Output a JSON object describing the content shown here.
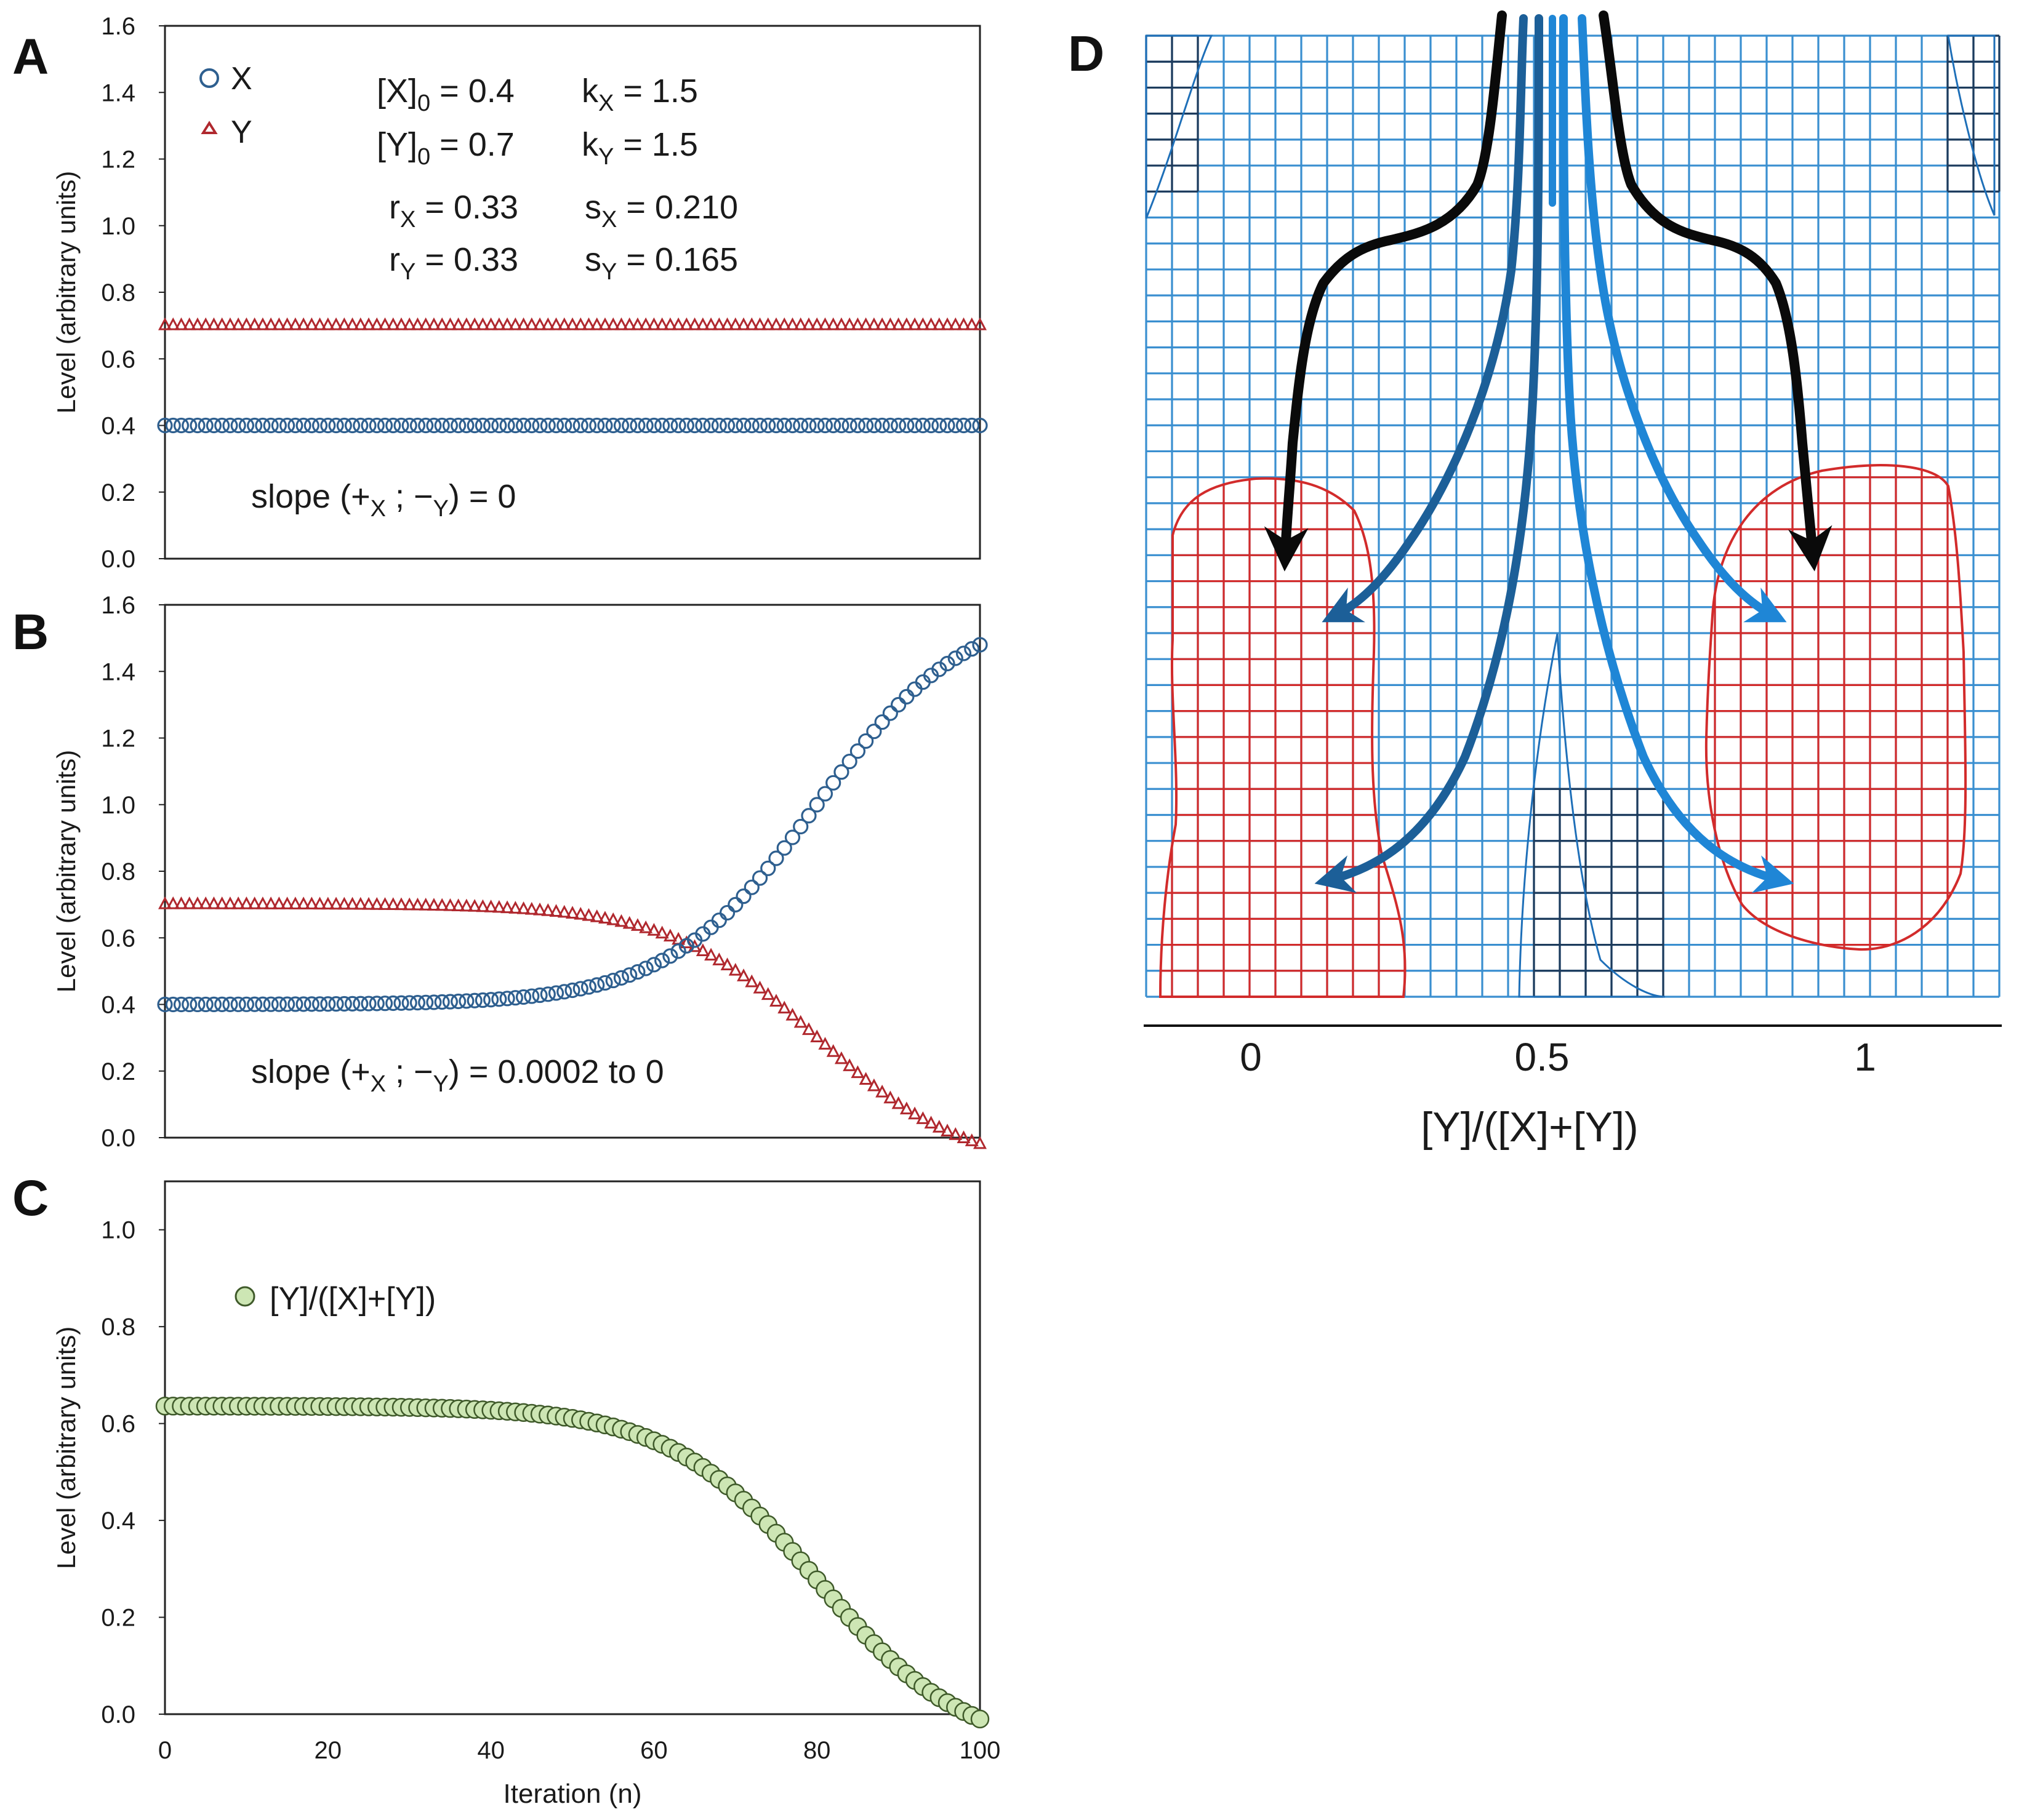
{
  "colors": {
    "x_series": "#2e5f8f",
    "y_series": "#b0282e",
    "ratio_fill": "#cde6b4",
    "ratio_stroke": "#3f5a2a",
    "grid_blue": "#3a8fd0",
    "region_red": "#d22b2b",
    "arrow_black": "#0a0a0a",
    "arrow_dark_blue": "#1c5f98",
    "arrow_blue": "#1f86d6"
  },
  "chart_data": [
    {
      "panel": "A",
      "type": "scatter",
      "title": "",
      "xlabel": "",
      "ylabel": "Level (arbitrary units)",
      "xlim": [
        0,
        100
      ],
      "ylim": [
        0,
        1.6
      ],
      "yticks": [
        "0.0",
        "0.2",
        "0.4",
        "0.6",
        "0.8",
        "1.0",
        "1.2",
        "1.4",
        "1.6"
      ],
      "legend": {
        "placement": "top-left",
        "x_label": "X",
        "y_label": "Y"
      },
      "params": {
        "x0": "[X]",
        "x0_sub": "0",
        "x0_val": " = 0.4",
        "y0": "[Y]",
        "y0_sub": "0",
        "y0_val": " = 0.7",
        "kx": "k",
        "kx_sub": "X",
        "kx_val": " = 1.5",
        "ky": "k",
        "ky_sub": "Y",
        "ky_val": " = 1.5",
        "rx": "r",
        "rx_sub": "X",
        "rx_val": " = 0.33",
        "sx": "s",
        "sx_sub": "X",
        "sx_val": " = 0.210",
        "ry": "r",
        "ry_sub": "Y",
        "ry_val": " = 0.33",
        "sy": "s",
        "sy_sub": "Y",
        "sy_val": " = 0.165"
      },
      "annotation": {
        "prefix": "slope (+",
        "sub1": "X",
        "middle": " ; −",
        "sub2": "Y",
        "suffix": ") = 0"
      },
      "series": [
        {
          "name": "X",
          "marker": "circle",
          "model": "constant",
          "value": 0.4
        },
        {
          "name": "Y",
          "marker": "triangle",
          "model": "constant",
          "value": 0.7
        }
      ]
    },
    {
      "panel": "B",
      "type": "scatter",
      "title": "",
      "xlabel": "",
      "ylabel": "Level (arbitrary units)",
      "xlim": [
        0,
        100
      ],
      "ylim": [
        0,
        1.6
      ],
      "yticks": [
        "0.0",
        "0.2",
        "0.4",
        "0.6",
        "0.8",
        "1.0",
        "1.2",
        "1.4",
        "1.6"
      ],
      "annotation": {
        "prefix": "slope (+",
        "sub1": "X",
        "middle": " ; −",
        "sub2": "Y",
        "suffix": ") = 0.0002 to 0"
      },
      "series": [
        {
          "name": "X",
          "marker": "circle",
          "model": "sigmoid",
          "start": 0.4,
          "end": 1.48,
          "midpoint": 80,
          "steepness": 0.11
        },
        {
          "name": "Y",
          "marker": "triangle",
          "model": "sigmoid",
          "start": 0.7,
          "end": -0.02,
          "midpoint": 80,
          "steepness": 0.11
        }
      ]
    },
    {
      "panel": "C",
      "type": "scatter",
      "title": "",
      "xlabel": "Iteration (n)",
      "ylabel": "Level (arbitrary units)",
      "xlim": [
        0,
        100
      ],
      "ylim": [
        0,
        1.1
      ],
      "xticks": [
        "0",
        "20",
        "40",
        "60",
        "80",
        "100"
      ],
      "yticks": [
        "0.0",
        "0.2",
        "0.4",
        "0.6",
        "0.8",
        "1.0"
      ],
      "legend": {
        "placement": "top-left",
        "label": "[Y]/([X]+[Y])"
      },
      "series": [
        {
          "name": "[Y]/([X]+[Y])",
          "marker": "filled-circle",
          "model": "sigmoid",
          "start": 0.636,
          "end": -0.01,
          "midpoint": 80,
          "steepness": 0.11
        }
      ]
    },
    {
      "panel": "D",
      "type": "diagram",
      "xlabel": "[Y]/([X]+[Y])",
      "xticks": [
        "0",
        "0.5",
        "1"
      ],
      "description_regions": [
        "X-dominant state (left, red)",
        "Y-dominant state (right, red)"
      ]
    }
  ]
}
